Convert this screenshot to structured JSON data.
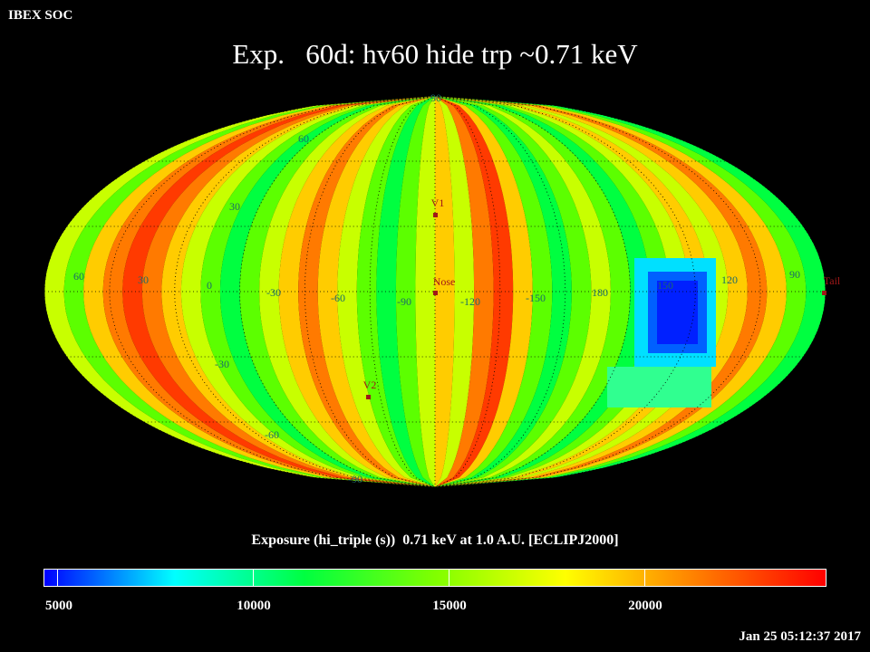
{
  "header": {
    "source_label": "IBEX SOC"
  },
  "title": "Exp.   60d: hv60 hide trp ~0.71 keV",
  "map": {
    "projection": "Mollweide (ecliptic)",
    "lat_labels": [
      "90",
      "60",
      "30",
      "-30",
      "-60",
      "-90"
    ],
    "lon_labels": [
      "60",
      "30",
      "0",
      "-30",
      "-60",
      "-90",
      "-120",
      "-150",
      "180",
      "150",
      "120",
      "90"
    ],
    "markers": [
      {
        "id": "V1",
        "label": "V1"
      },
      {
        "id": "Nose",
        "label": "Nose"
      },
      {
        "id": "V2",
        "label": "V2"
      },
      {
        "id": "Tail",
        "label": "Tail"
      }
    ],
    "marker_color": "#a01818",
    "grid_label_color": "#1a6a6a"
  },
  "colorbar": {
    "title": "Exposure (hi_triple (s))  0.71 keV at 1.0 A.U. [ECLIPJ2000]",
    "min": 5000,
    "max": 25000,
    "tick_labels": [
      "5000",
      "10000",
      "15000",
      "20000"
    ],
    "gradient": [
      "#0000ff",
      "#00ffff",
      "#00ff40",
      "#80ff00",
      "#ffff00",
      "#ff8000",
      "#ff0000"
    ]
  },
  "timestamp": "Jan 25 05:12:37 2017"
}
